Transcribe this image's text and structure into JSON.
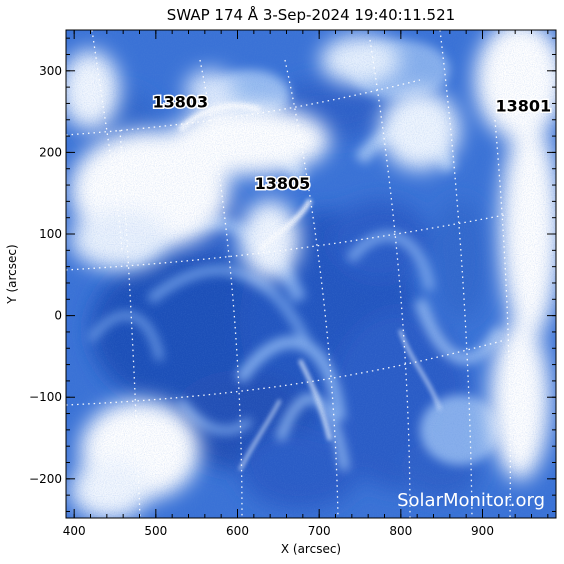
{
  "title": "SWAP 174 Å  3-Sep-2024 19:40:11.521",
  "x_axis": {
    "label": "X (arcsec)",
    "range": [
      390,
      990
    ],
    "ticks": [
      400,
      500,
      600,
      700,
      800,
      900
    ]
  },
  "y_axis": {
    "label": "Y (arcsec)",
    "range": [
      -248,
      350
    ],
    "ticks": [
      -200,
      -100,
      0,
      100,
      200,
      300
    ]
  },
  "active_regions": [
    {
      "label": "13803",
      "x": 530,
      "y": 255
    },
    {
      "label": "13805",
      "x": 655,
      "y": 155
    },
    {
      "label": "13801",
      "x": 950,
      "y": 250
    }
  ],
  "watermark": "SolarMonitor.org",
  "colors": {
    "deep_blue": "#1f4fb8",
    "mid_blue": "#3f7be0",
    "light_blue": "#9dc0f2",
    "bright": "#ffffff"
  }
}
